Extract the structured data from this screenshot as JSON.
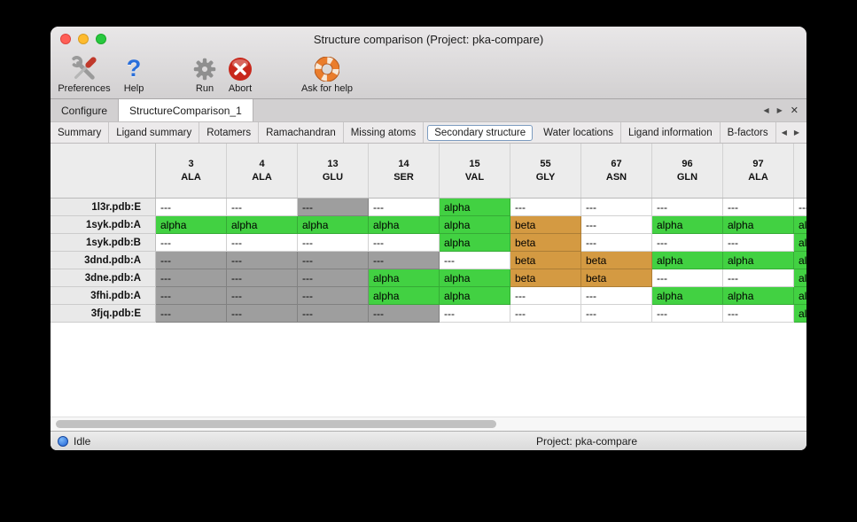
{
  "window": {
    "title": "Structure comparison (Project: pka-compare)"
  },
  "toolbar": {
    "items": [
      {
        "label": "Preferences",
        "icon": "tools-icon"
      },
      {
        "label": "Help",
        "icon": "question-icon"
      },
      {
        "label": "Run",
        "icon": "gear-icon"
      },
      {
        "label": "Abort",
        "icon": "abort-icon"
      },
      {
        "label": "Ask for help",
        "icon": "life-ring-icon"
      }
    ]
  },
  "tabs": {
    "items": [
      {
        "label": "Configure",
        "selected": false
      },
      {
        "label": "StructureComparison_1",
        "selected": true
      }
    ],
    "nav": {
      "prev": "◀",
      "next": "▶",
      "close": "✕"
    }
  },
  "subtabs": {
    "items": [
      "Summary",
      "Ligand summary",
      "Rotamers",
      "Ramachandran",
      "Missing atoms",
      "Secondary structure",
      "Water locations",
      "Ligand information",
      "B-factors"
    ],
    "selected": "Secondary structure",
    "nav": {
      "prev": "◀",
      "next": "▶"
    }
  },
  "table": {
    "columns": [
      {
        "num": "3",
        "res": "ALA"
      },
      {
        "num": "4",
        "res": "ALA"
      },
      {
        "num": "13",
        "res": "GLU"
      },
      {
        "num": "14",
        "res": "SER"
      },
      {
        "num": "15",
        "res": "VAL"
      },
      {
        "num": "55",
        "res": "GLY"
      },
      {
        "num": "67",
        "res": "ASN"
      },
      {
        "num": "96",
        "res": "GLN"
      },
      {
        "num": "97",
        "res": "ALA"
      },
      {
        "num": "",
        "res": ""
      }
    ],
    "cell_types": {
      "a": {
        "label": "alpha",
        "bg": "#42d142"
      },
      "b": {
        "label": "beta",
        "bg": "#d49a42"
      },
      "g": {
        "label": "---",
        "bg": "#9e9e9e"
      },
      "-": {
        "label": "---",
        "bg": "#ffffff"
      }
    },
    "rows": [
      {
        "name": "1l3r.pdb:E",
        "cells": [
          "-",
          "-",
          "g",
          "-",
          "a",
          "-",
          "-",
          "-",
          "-",
          "-"
        ]
      },
      {
        "name": "1syk.pdb:A",
        "cells": [
          "a",
          "a",
          "a",
          "a",
          "a",
          "b",
          "-",
          "a",
          "a",
          "a"
        ]
      },
      {
        "name": "1syk.pdb:B",
        "cells": [
          "-",
          "-",
          "-",
          "-",
          "a",
          "b",
          "-",
          "-",
          "-",
          "a"
        ]
      },
      {
        "name": "3dnd.pdb:A",
        "cells": [
          "g",
          "g",
          "g",
          "g",
          "-",
          "b",
          "b",
          "a",
          "a",
          "a"
        ]
      },
      {
        "name": "3dne.pdb:A",
        "cells": [
          "g",
          "g",
          "g",
          "a",
          "a",
          "b",
          "b",
          "-",
          "-",
          "a"
        ]
      },
      {
        "name": "3fhi.pdb:A",
        "cells": [
          "g",
          "g",
          "g",
          "a",
          "a",
          "-",
          "-",
          "a",
          "a",
          "a"
        ]
      },
      {
        "name": "3fjq.pdb:E",
        "cells": [
          "g",
          "g",
          "g",
          "g",
          "-",
          "-",
          "-",
          "-",
          "-",
          "a"
        ]
      }
    ]
  },
  "statusbar": {
    "status": "Idle",
    "project": "Project: pka-compare"
  },
  "colors": {
    "alpha_green": "#42d142",
    "beta_orange": "#d49a42",
    "missing_gray": "#9e9e9e"
  }
}
